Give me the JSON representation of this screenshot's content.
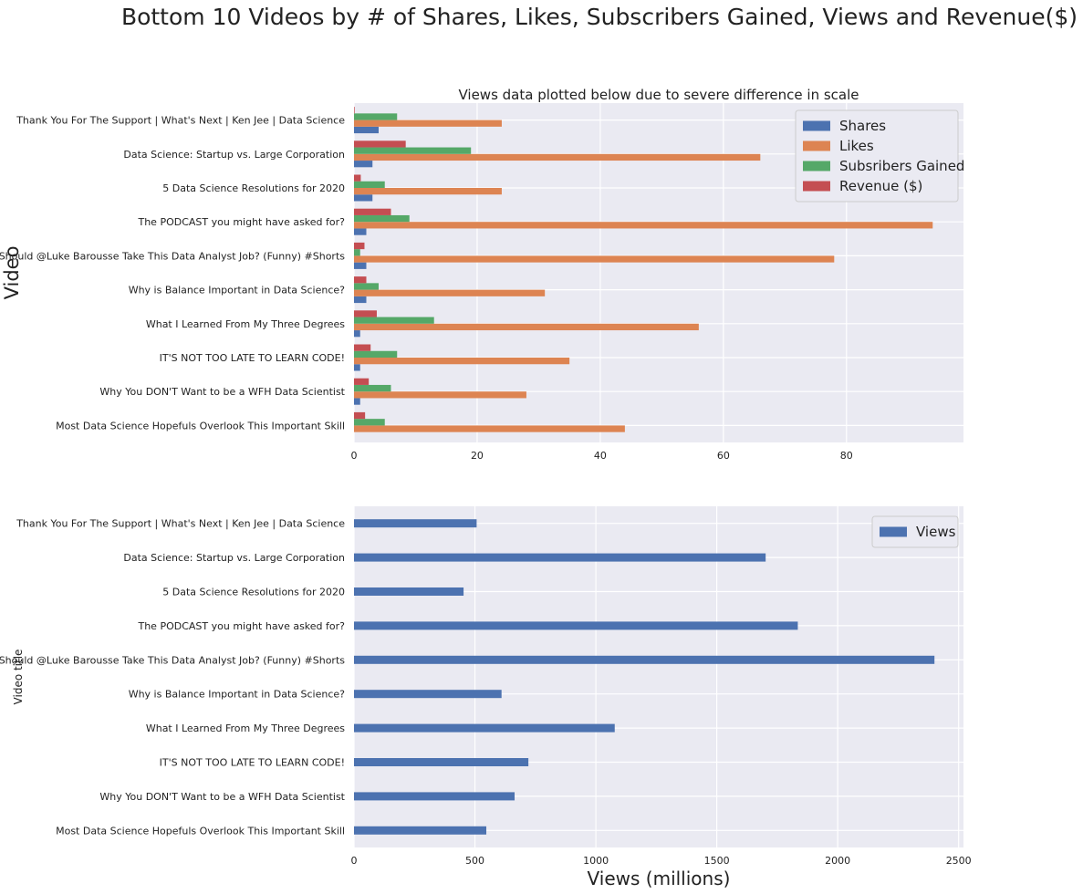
{
  "suptitle": "Bottom 10 Videos by # of Shares, Likes, Subscribers Gained, Views and Revenue($)",
  "chart_data": [
    {
      "type": "bar",
      "orientation": "horizontal",
      "title": "Views data plotted below due to severe difference in scale",
      "ylabel": "Video",
      "xlabel": "",
      "categories": [
        "Thank You For The Support | What's Next | Ken Jee | Data Science",
        "Data Science: Startup vs. Large Corporation",
        "5 Data Science Resolutions for 2020",
        "The PODCAST you might have asked for?",
        "Should  @Luke Barousse Take This Data Analyst Job? (Funny) #Shorts",
        "Why is Balance Important in Data Science?",
        "What I Learned From My Three Degrees",
        "IT'S NOT TOO LATE TO LEARN CODE!",
        "Why You DON'T Want to be a WFH Data Scientist",
        "Most Data Science Hopefuls Overlook This Important Skill"
      ],
      "series": [
        {
          "name": "Shares",
          "color": "#4c72b0",
          "values": [
            4,
            3,
            3,
            2,
            2,
            2,
            1,
            1,
            1,
            0
          ]
        },
        {
          "name": "Likes",
          "color": "#dd8452",
          "values": [
            24,
            66,
            24,
            94,
            78,
            31,
            56,
            35,
            28,
            44
          ]
        },
        {
          "name": "Subsribers Gained",
          "color": "#55a868",
          "values": [
            7,
            19,
            5,
            9,
            1,
            4,
            13,
            7,
            6,
            5
          ]
        },
        {
          "name": "Revenue ($)",
          "color": "#c44e52",
          "values": [
            0.1,
            8.4,
            1.1,
            6,
            1.7,
            2,
            3.7,
            2.7,
            2.4,
            1.8
          ]
        }
      ],
      "xlim": [
        0,
        99
      ],
      "xticks": [
        "0",
        "20",
        "40",
        "60",
        "80"
      ],
      "xtick_values": [
        0,
        20,
        40,
        60,
        80
      ],
      "legend": "top-right",
      "grid": true,
      "background": "#eaeaf2"
    },
    {
      "type": "bar",
      "orientation": "horizontal",
      "title": "",
      "ylabel": "Video title",
      "xlabel": "Views (millions)",
      "categories": [
        "Thank You For The Support | What's Next | Ken Jee | Data Science",
        "Data Science: Startup vs. Large Corporation",
        "5 Data Science Resolutions for 2020",
        "The PODCAST you might have asked for?",
        "Should  @Luke Barousse Take This Data Analyst Job? (Funny) #Shorts",
        "Why is Balance Important in Data Science?",
        "What I Learned From My Three Degrees",
        "IT'S NOT TOO LATE TO LEARN CODE!",
        "Why You DON'T Want to be a WFH Data Scientist",
        "Most Data Science Hopefuls Overlook This Important Skill"
      ],
      "series": [
        {
          "name": "Views",
          "color": "#4c72b0",
          "values": [
            507,
            1702,
            453,
            1835,
            2400,
            610,
            1078,
            721,
            664,
            547
          ]
        }
      ],
      "xlim": [
        0,
        2520
      ],
      "xticks": [
        "0",
        "500",
        "1000",
        "1500",
        "2000",
        "2500"
      ],
      "xtick_values": [
        0,
        500,
        1000,
        1500,
        2000,
        2500
      ],
      "legend": "top-right",
      "grid": true,
      "background": "#eaeaf2"
    }
  ]
}
